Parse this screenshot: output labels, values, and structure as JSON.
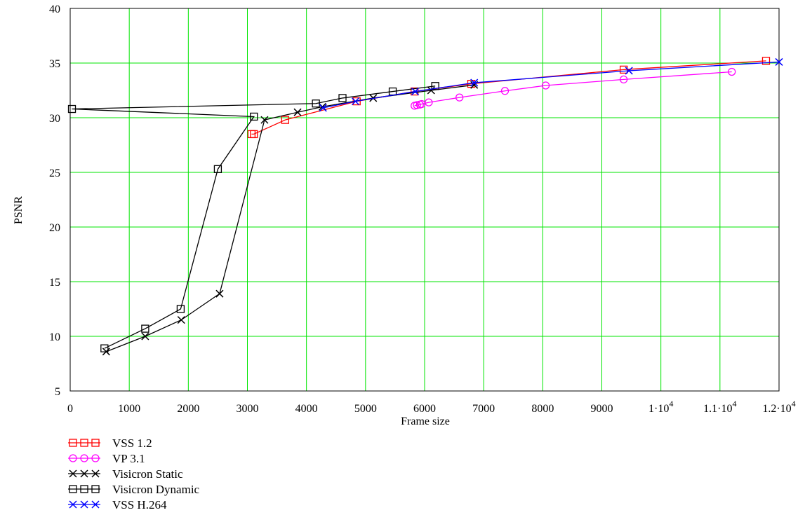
{
  "chart_data": {
    "type": "line",
    "xlabel": "Frame size",
    "ylabel": "PSNR",
    "xlim": [
      0,
      12000
    ],
    "ylim": [
      5,
      40
    ],
    "grid": true,
    "legend_position": "bottom-left",
    "x_ticks": [
      {
        "value": 0,
        "label": "0"
      },
      {
        "value": 1000,
        "label": "1000"
      },
      {
        "value": 2000,
        "label": "2000"
      },
      {
        "value": 3000,
        "label": "3000"
      },
      {
        "value": 4000,
        "label": "4000"
      },
      {
        "value": 5000,
        "label": "5000"
      },
      {
        "value": 6000,
        "label": "6000"
      },
      {
        "value": 7000,
        "label": "7000"
      },
      {
        "value": 8000,
        "label": "8000"
      },
      {
        "value": 9000,
        "label": "9000"
      },
      {
        "value": 10000,
        "mant": "1",
        "exp": "4"
      },
      {
        "value": 11000,
        "mant": "1.1",
        "exp": "4"
      },
      {
        "value": 12000,
        "mant": "1.2",
        "exp": "4"
      }
    ],
    "y_ticks": [
      {
        "value": 5,
        "label": "5"
      },
      {
        "value": 10,
        "label": "10"
      },
      {
        "value": 15,
        "label": "15"
      },
      {
        "value": 20,
        "label": "20"
      },
      {
        "value": 25,
        "label": "25"
      },
      {
        "value": 30,
        "label": "30"
      },
      {
        "value": 35,
        "label": "35"
      },
      {
        "value": 40,
        "label": "40"
      }
    ],
    "grid_color": "#00e600",
    "series": [
      {
        "name": "VSS 1.2",
        "color": "#ff0000",
        "marker": "square",
        "points": [
          [
            3070,
            28.5
          ],
          [
            3110,
            28.5
          ],
          [
            3640,
            29.8
          ],
          [
            4850,
            31.5
          ],
          [
            5830,
            32.4
          ],
          [
            6790,
            33.1
          ],
          [
            9370,
            34.4
          ],
          [
            11780,
            35.2
          ]
        ]
      },
      {
        "name": "VP 3.1",
        "color": "#ff00ff",
        "marker": "circle",
        "points": [
          [
            5830,
            31.1
          ],
          [
            5870,
            31.15
          ],
          [
            5920,
            31.2
          ],
          [
            5950,
            31.25
          ],
          [
            6070,
            31.4
          ],
          [
            6590,
            31.85
          ],
          [
            7360,
            32.45
          ],
          [
            8050,
            32.95
          ],
          [
            9370,
            33.5
          ],
          [
            11200,
            34.2
          ]
        ]
      },
      {
        "name": "Visicron Static",
        "color": "#000000",
        "marker": "x",
        "points": [
          [
            610,
            8.6
          ],
          [
            1270,
            10.0
          ],
          [
            1880,
            11.5
          ],
          [
            2530,
            13.9
          ],
          [
            3290,
            29.8
          ],
          [
            3850,
            30.5
          ],
          [
            4270,
            31.0
          ],
          [
            5130,
            31.8
          ],
          [
            6110,
            32.5
          ],
          [
            6840,
            33.0
          ]
        ]
      },
      {
        "name": "Visicron Dynamic",
        "color": "#000000",
        "marker": "square",
        "points": [
          [
            6180,
            32.9
          ],
          [
            5460,
            32.4
          ],
          [
            4610,
            31.8
          ],
          [
            4160,
            31.3
          ],
          [
            30,
            30.8
          ],
          [
            3110,
            30.1
          ],
          [
            2500,
            25.3
          ],
          [
            1870,
            12.5
          ],
          [
            1270,
            10.7
          ],
          [
            580,
            8.9
          ]
        ]
      },
      {
        "name": "VSS H.264",
        "color": "#0000ff",
        "marker": "x",
        "points": [
          [
            4280,
            30.9
          ],
          [
            4830,
            31.5
          ],
          [
            5840,
            32.4
          ],
          [
            6840,
            33.2
          ],
          [
            9460,
            34.3
          ],
          [
            12000,
            35.1
          ]
        ]
      }
    ]
  }
}
